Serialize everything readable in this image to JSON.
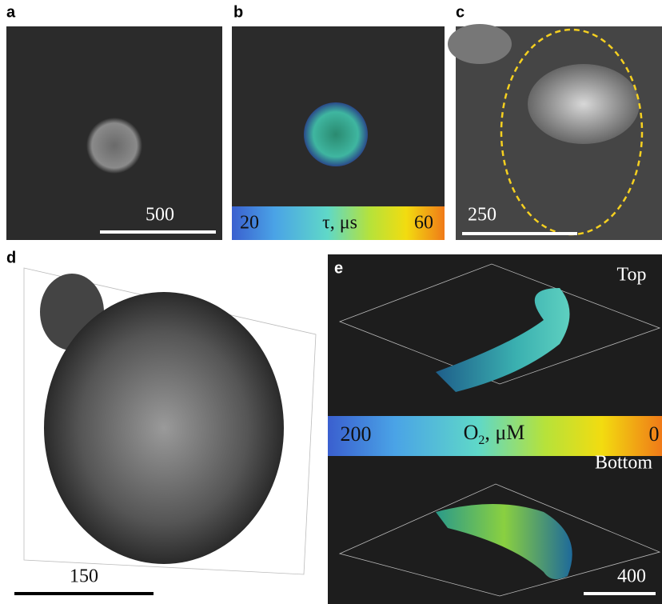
{
  "panels": {
    "a": {
      "label": "a",
      "scale_bar": "500"
    },
    "b": {
      "label": "b",
      "colorbar": {
        "min": "20",
        "title": "τ, μs",
        "max": "60"
      }
    },
    "c": {
      "label": "c",
      "scale_bar": "250"
    },
    "d": {
      "label": "d",
      "scale_bar": "150"
    },
    "e": {
      "label": "e",
      "top": "Top",
      "bottom": "Bottom",
      "scale_bar": "400",
      "colorbar": {
        "min": "200",
        "title_main": "O",
        "title_sub": "2",
        "title_unit": ", μM",
        "max": "0"
      }
    }
  }
}
